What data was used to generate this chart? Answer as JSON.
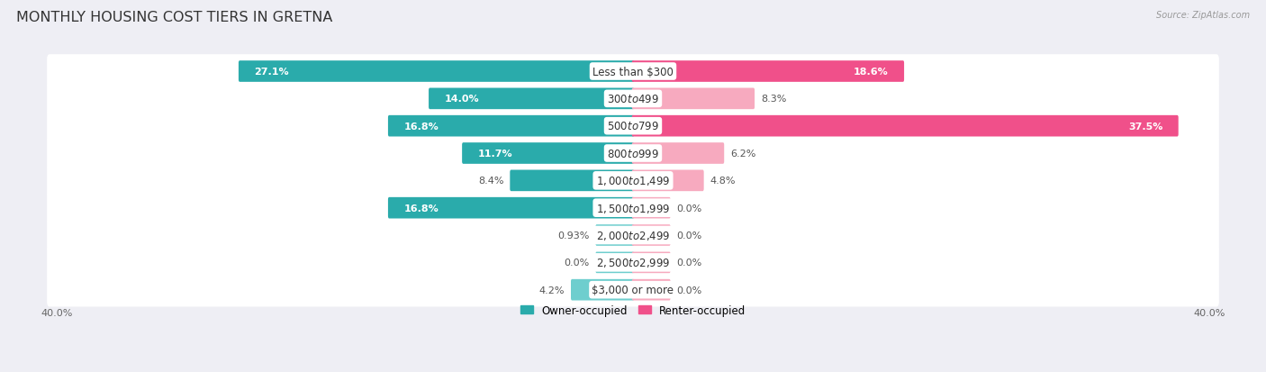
{
  "title": "MONTHLY HOUSING COST TIERS IN GRETNA",
  "source": "Source: ZipAtlas.com",
  "categories": [
    "Less than $300",
    "$300 to $499",
    "$500 to $799",
    "$800 to $999",
    "$1,000 to $1,499",
    "$1,500 to $1,999",
    "$2,000 to $2,499",
    "$2,500 to $2,999",
    "$3,000 or more"
  ],
  "owner_values": [
    27.1,
    14.0,
    16.8,
    11.7,
    8.4,
    16.8,
    0.93,
    0.0,
    4.2
  ],
  "renter_values": [
    18.6,
    8.3,
    37.5,
    6.2,
    4.8,
    0.0,
    0.0,
    0.0,
    0.0
  ],
  "owner_color_dark": "#2AABAB",
  "owner_color_light": "#6ECECE",
  "renter_color_dark": "#F0508A",
  "renter_color_light": "#F7AABF",
  "owner_label": "Owner-occupied",
  "renter_label": "Renter-occupied",
  "axis_max": 40.0,
  "background_color": "#EEEEF4",
  "row_bg_color": "#FFFFFF",
  "row_separator_color": "#D8D8E8",
  "title_fontsize": 11.5,
  "cat_fontsize": 8.5,
  "val_fontsize": 8.0,
  "axis_label_fontsize": 8,
  "legend_fontsize": 8.5,
  "min_renter_stub": 2.5,
  "min_owner_stub": 2.5
}
